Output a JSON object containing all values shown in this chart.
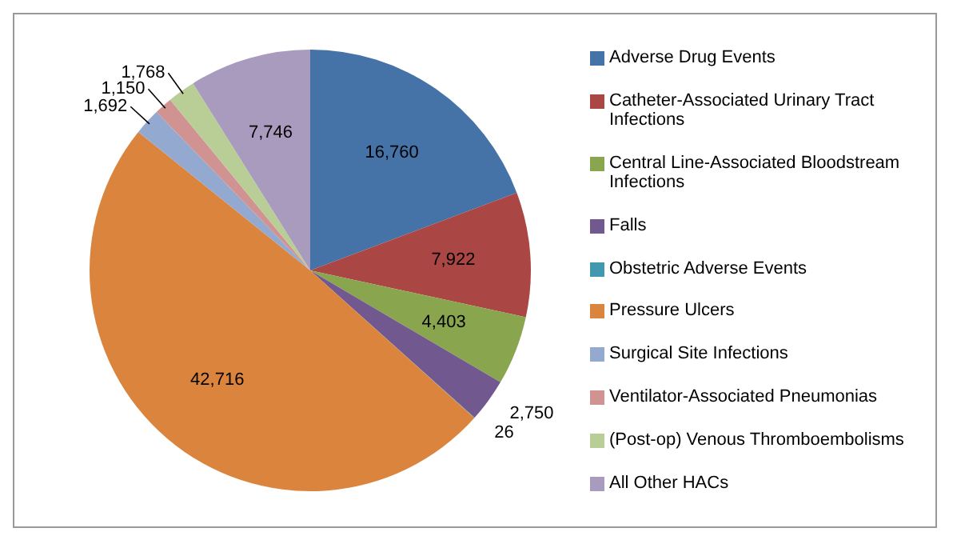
{
  "chart_data": {
    "type": "pie",
    "categories": [
      "Adverse Drug Events",
      "Catheter-Associated Urinary Tract Infections",
      "Central Line-Associated Bloodstream Infections",
      "Falls",
      "Obstetric Adverse Events",
      "Pressure Ulcers",
      "Surgical Site Infections",
      "Ventilator-Associated Pneumonias",
      "(Post-op) Venous Thromboembolisms",
      "All Other HACs"
    ],
    "values": [
      16760,
      7922,
      4403,
      2750,
      26,
      42716,
      1692,
      1150,
      1768,
      7746
    ],
    "value_labels": [
      "16,760",
      "7,922",
      "4,403",
      "2,750",
      "26",
      "42,716",
      "1,692",
      "1,150",
      "1,768",
      "7,746"
    ],
    "colors": [
      "#4572a7",
      "#aa4643",
      "#89a54e",
      "#71588f",
      "#4198af",
      "#db843d",
      "#93a9cf",
      "#d19392",
      "#b9cd96",
      "#a99bbd"
    ],
    "legend": "right"
  }
}
